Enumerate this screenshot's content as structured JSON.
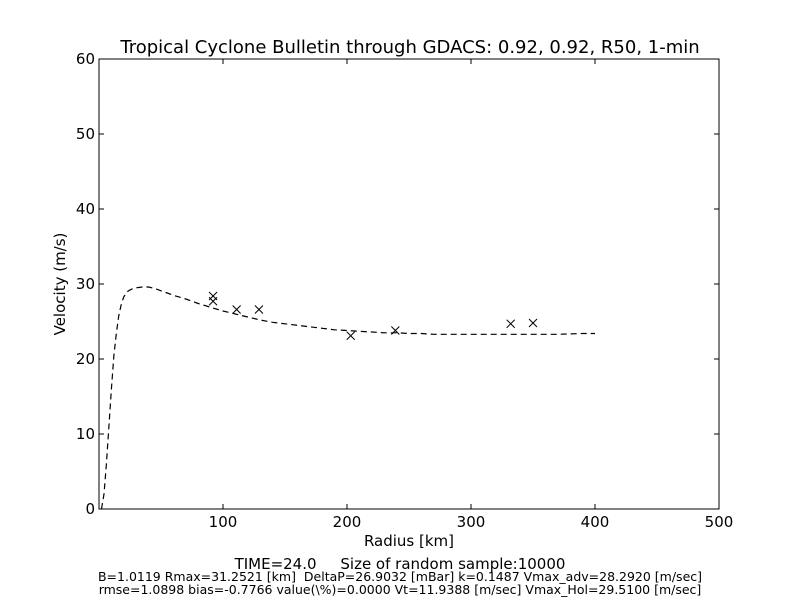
{
  "chart_data": {
    "type": "line",
    "title": "Tropical Cyclone Bulletin through GDACS: 0.92, 0.92, R50, 1-min",
    "xlabel": "Radius [km]",
    "ylabel": "Velocity (m/s)",
    "xlim": [
      0,
      500
    ],
    "ylim": [
      0,
      60
    ],
    "xticks": [
      100,
      200,
      300,
      400,
      500
    ],
    "yticks": [
      0,
      10,
      20,
      30,
      40,
      50,
      60
    ],
    "grid": false,
    "series": [
      {
        "style": "dashed-line",
        "color": "#000000",
        "x": [
          2,
          4,
          6,
          8,
          10,
          12,
          14,
          16,
          18,
          20,
          23,
          26,
          30,
          35,
          40,
          45,
          50,
          55,
          60,
          70,
          80,
          90,
          100,
          110,
          120,
          130,
          140,
          150,
          160,
          170,
          180,
          190,
          200,
          210,
          220,
          230,
          240,
          250,
          260,
          270,
          280,
          290,
          300,
          310,
          320,
          330,
          340,
          350,
          360,
          370,
          380,
          390,
          400
        ],
        "y": [
          0,
          2,
          6,
          11,
          16,
          20.5,
          23.5,
          25.8,
          27.3,
          28.3,
          29.0,
          29.3,
          29.5,
          29.6,
          29.6,
          29.4,
          29.1,
          28.8,
          28.5,
          28.0,
          27.4,
          26.9,
          26.4,
          26.0,
          25.6,
          25.2,
          24.9,
          24.7,
          24.5,
          24.3,
          24.1,
          23.9,
          23.8,
          23.7,
          23.6,
          23.5,
          23.5,
          23.4,
          23.4,
          23.3,
          23.3,
          23.3,
          23.3,
          23.3,
          23.3,
          23.3,
          23.3,
          23.3,
          23.3,
          23.3,
          23.35,
          23.4,
          23.4
        ]
      },
      {
        "style": "x-markers",
        "color": "#000000",
        "x": [
          92,
          92,
          111,
          129,
          203,
          239,
          332,
          350
        ],
        "y": [
          28.4,
          27.7,
          26.6,
          26.6,
          23.1,
          23.8,
          24.7,
          24.8
        ]
      }
    ]
  },
  "footer": {
    "time_label": "TIME=24.0     Size of random sample:10000",
    "params_line1": "B=1.0119 Rmax=31.2521 [km]  DeltaP=26.9032 [mBar] k=0.1487 Vmax_adv=28.2920 [m/sec]",
    "params_line2": "rmse=1.0898 bias=-0.7766 value(\\%)=0.0000 Vt=11.9388 [m/sec] Vmax_Hol=29.5100 [m/sec]"
  }
}
